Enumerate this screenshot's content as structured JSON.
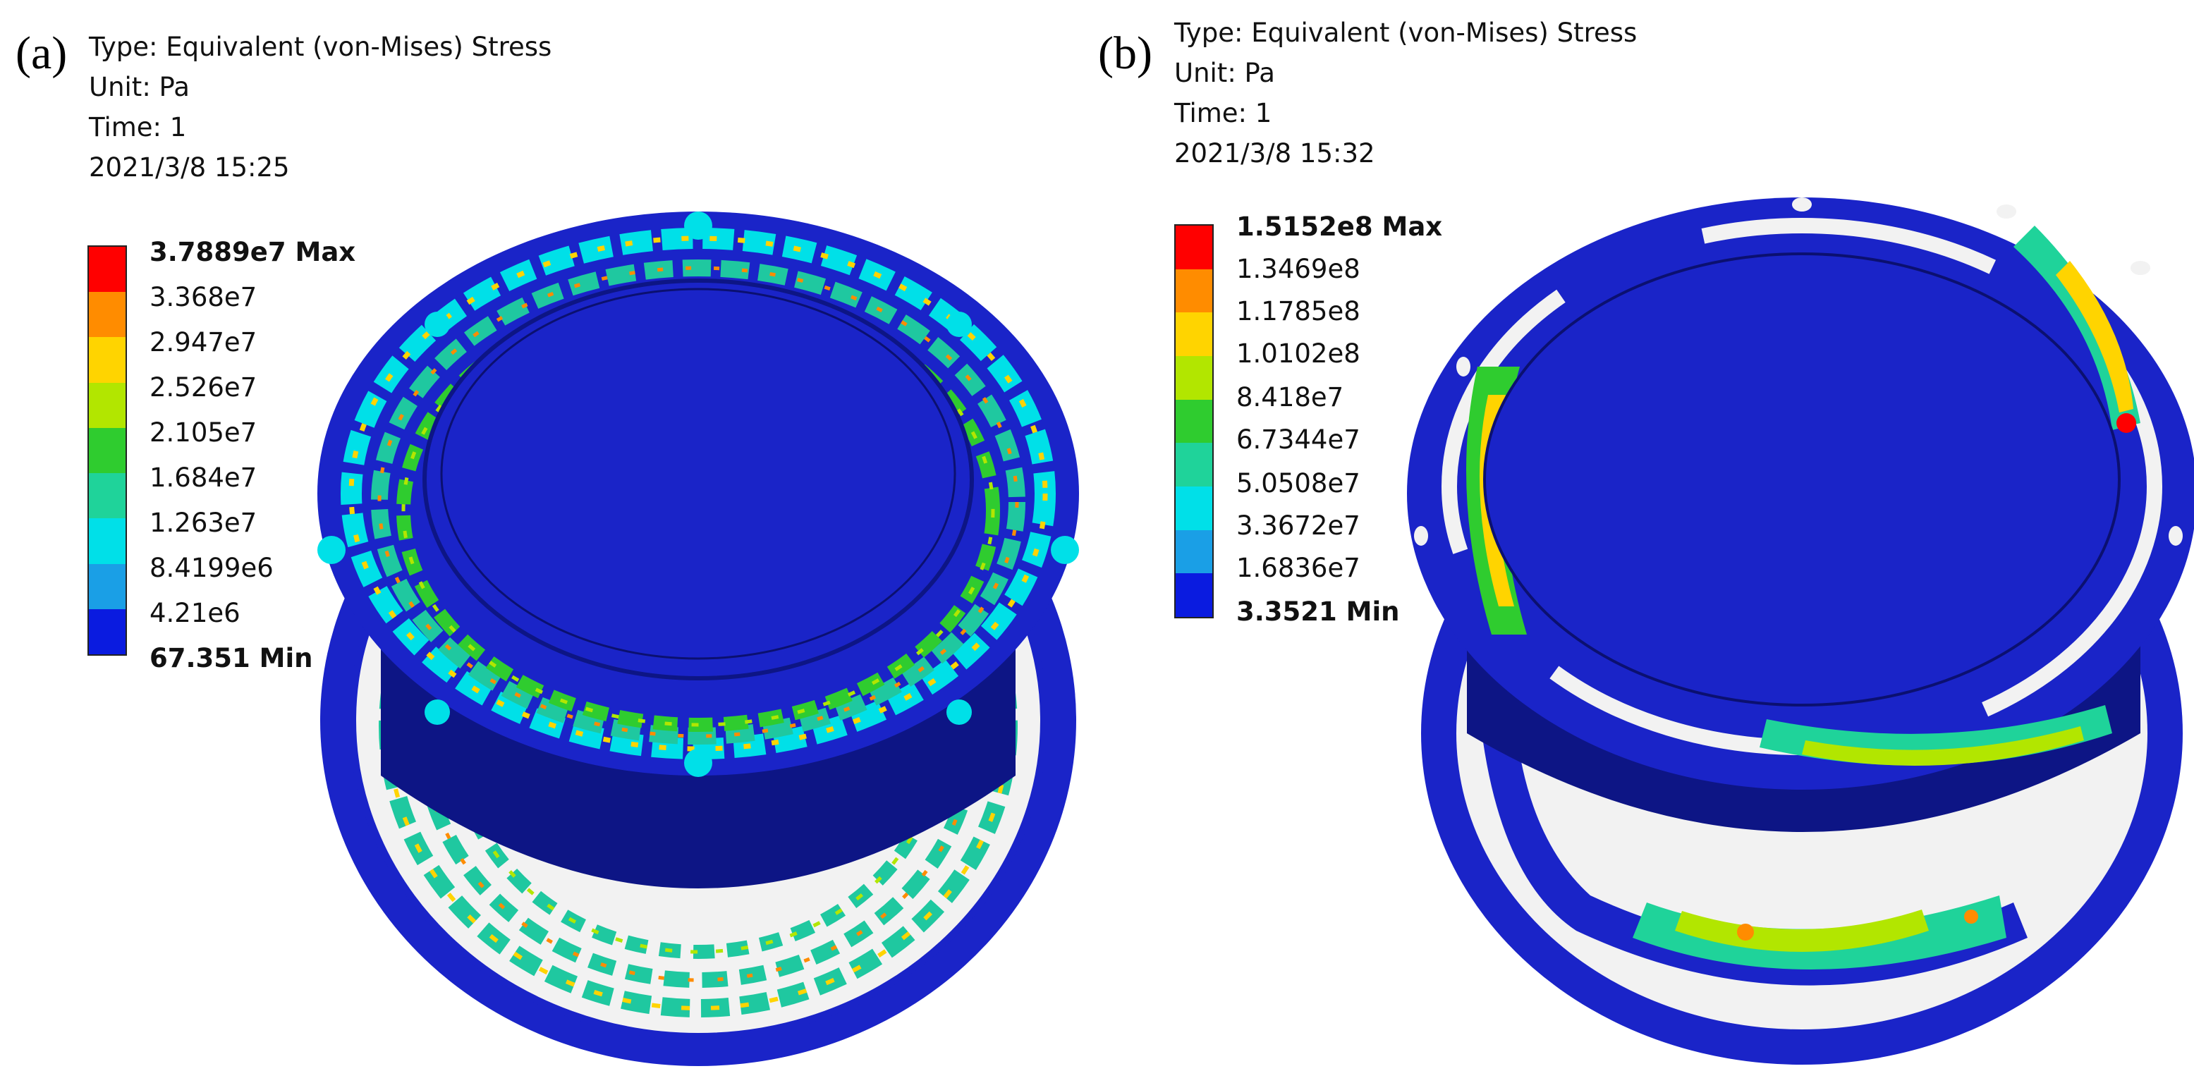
{
  "panels": [
    {
      "label": "(a)",
      "info": {
        "type": "Type: Equivalent (von-Mises) Stress",
        "unit": "Unit: Pa",
        "time": "Time: 1",
        "date": "2021/3/8 15:25"
      },
      "legend": {
        "max": "3.7889e7 Max",
        "ticks": [
          "3.368e7",
          "2.947e7",
          "2.526e7",
          "2.105e7",
          "1.684e7",
          "1.263e7",
          "8.4199e6",
          "4.21e6"
        ],
        "min": "67.351 Min"
      }
    },
    {
      "label": "(b)",
      "info": {
        "type": "Type: Equivalent (von-Mises) Stress",
        "unit": "Unit: Pa",
        "time": "Time: 1",
        "date": "2021/3/8 15:32"
      },
      "legend": {
        "max": "1.5152e8 Max",
        "ticks": [
          "1.3469e8",
          "1.1785e8",
          "1.0102e8",
          "8.418e7",
          "6.7344e7",
          "5.0508e7",
          "3.3672e7",
          "1.6836e7"
        ],
        "min": "3.3521 Min"
      }
    }
  ],
  "colors": {
    "scale": [
      "#ff0000",
      "#ff8c00",
      "#ffd400",
      "#b2e600",
      "#2fcc2f",
      "#1fd39a",
      "#00e0e8",
      "#1a9fe6",
      "#0a1be0"
    ],
    "model_blue": "#1a24c8",
    "model_dark": "#0d1585"
  }
}
